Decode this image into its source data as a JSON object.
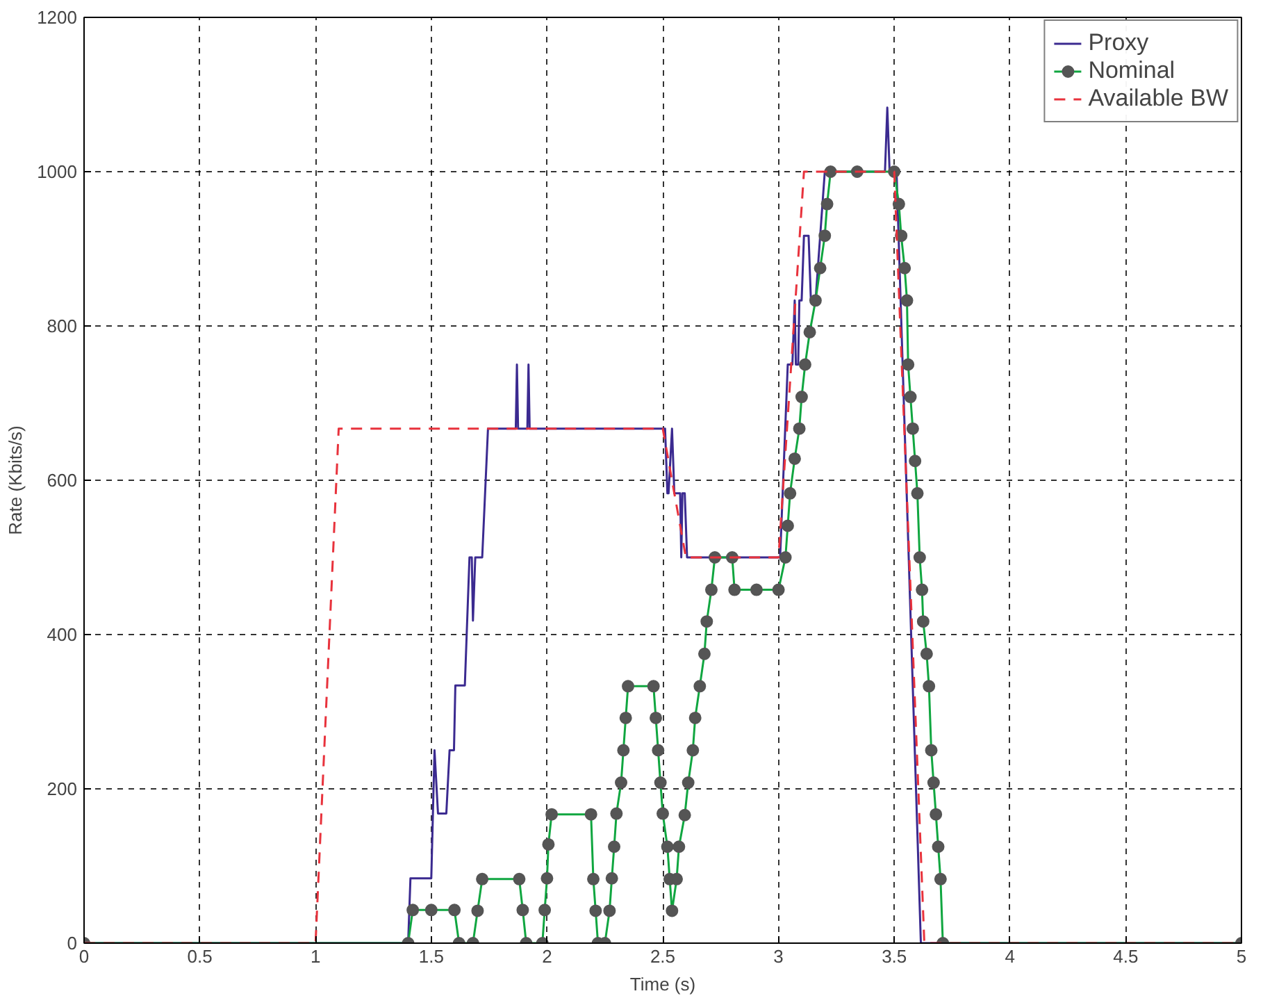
{
  "chart_data": {
    "type": "line",
    "xlabel": "Time (s)",
    "ylabel": "Rate (Kbits/s)",
    "xlim": [
      0,
      5
    ],
    "ylim": [
      0,
      1200
    ],
    "xticks": [
      0,
      0.5,
      1,
      1.5,
      2,
      2.5,
      3,
      3.5,
      4,
      4.5,
      5
    ],
    "yticks": [
      0,
      200,
      400,
      600,
      800,
      1000,
      1200
    ],
    "grid": true,
    "legend": "top right",
    "series": [
      {
        "name": "Proxy",
        "color": "#3b2a90",
        "line_style": "solid",
        "marker": "none",
        "x": [
          0,
          1.4,
          1.41,
          1.5,
          1.514,
          1.529,
          1.565,
          1.579,
          1.598,
          1.604,
          1.645,
          1.665,
          1.675,
          1.68,
          1.69,
          1.72,
          1.745,
          1.865,
          1.87,
          1.875,
          1.88,
          1.915,
          1.92,
          1.925,
          2.5,
          2.51,
          2.52,
          2.525,
          2.54,
          2.55,
          2.56,
          2.575,
          2.58,
          2.585,
          2.595,
          2.605,
          3.007,
          3.04,
          3.06,
          3.07,
          3.075,
          3.085,
          3.09,
          3.1,
          3.11,
          3.13,
          3.14,
          3.16,
          3.2,
          3.46,
          3.47,
          3.48,
          3.51,
          3.615,
          5
        ],
        "values": [
          0,
          0,
          84,
          84,
          250,
          168,
          168,
          250,
          250,
          334,
          334,
          500,
          500,
          418,
          500,
          500,
          667,
          667,
          750,
          667,
          667,
          667,
          750,
          667,
          667,
          667,
          583,
          583,
          667,
          583,
          583,
          583,
          500,
          583,
          583,
          500,
          500,
          750,
          750,
          833,
          750,
          750,
          833,
          833,
          917,
          917,
          833,
          833,
          1000,
          1000,
          1083,
          1000,
          1000,
          0,
          0
        ]
      },
      {
        "name": "Nominal",
        "color": "#10a640",
        "line_style": "solid",
        "marker": "circle",
        "x": [
          0,
          1.4,
          1.42,
          1.5,
          1.6,
          1.62,
          1.68,
          1.7,
          1.72,
          1.88,
          1.895,
          1.91,
          1.98,
          1.99,
          2.0,
          2.006,
          2.02,
          2.19,
          2.2,
          2.21,
          2.22,
          2.25,
          2.27,
          2.28,
          2.29,
          2.3,
          2.32,
          2.33,
          2.34,
          2.35,
          2.46,
          2.47,
          2.48,
          2.49,
          2.5,
          2.52,
          2.53,
          2.54,
          2.56,
          2.57,
          2.595,
          2.61,
          2.63,
          2.64,
          2.66,
          2.68,
          2.69,
          2.71,
          2.725,
          2.8,
          2.81,
          2.905,
          3.0,
          3.03,
          3.04,
          3.05,
          3.07,
          3.09,
          3.1,
          3.115,
          3.135,
          3.16,
          3.18,
          3.2,
          3.21,
          3.225,
          3.34,
          3.5,
          3.52,
          3.53,
          3.545,
          3.555,
          3.56,
          3.57,
          3.58,
          3.59,
          3.6,
          3.61,
          3.62,
          3.625,
          3.64,
          3.65,
          3.66,
          3.67,
          3.68,
          3.69,
          3.7,
          3.71,
          5
        ],
        "values": [
          0,
          0,
          43,
          43,
          43,
          0,
          0,
          42,
          83,
          83,
          43,
          0,
          0,
          43,
          84,
          128,
          167,
          167,
          83,
          42,
          0,
          0,
          42,
          84,
          125,
          168,
          208,
          250,
          292,
          333,
          333,
          292,
          250,
          208,
          168,
          125,
          83,
          42,
          83,
          125,
          166,
          208,
          250,
          292,
          333,
          375,
          417,
          458,
          500,
          500,
          458,
          458,
          458,
          500,
          541,
          583,
          628,
          667,
          708,
          750,
          792,
          833,
          875,
          917,
          958,
          1000,
          1000,
          1000,
          958,
          917,
          875,
          833,
          750,
          708,
          667,
          625,
          583,
          500,
          458,
          417,
          375,
          333,
          250,
          208,
          167,
          125,
          83,
          0,
          0
        ]
      },
      {
        "name": "Available BW",
        "color": "#e8323c",
        "line_style": "dashed",
        "marker": "none",
        "x": [
          0,
          1.0,
          1.1,
          2.5,
          2.55,
          2.6,
          3.0,
          3.11,
          3.5,
          3.63,
          5
        ],
        "values": [
          0,
          0,
          667,
          667,
          583,
          500,
          500,
          1000,
          1000,
          0,
          0
        ]
      }
    ]
  }
}
